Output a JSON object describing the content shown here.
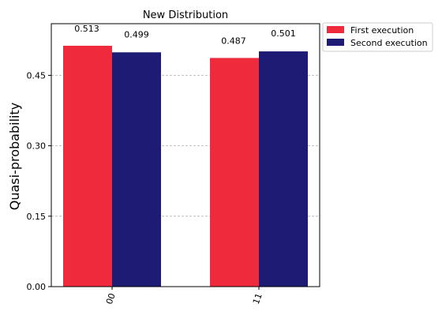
{
  "chart_data": {
    "type": "bar",
    "title": "New Distribution",
    "ylabel": "Quasi-probability",
    "xlabel": "",
    "categories": [
      "00",
      "11"
    ],
    "ylim": [
      0,
      0.56
    ],
    "yticks": [
      0.0,
      0.15,
      0.3,
      0.45
    ],
    "ytick_labels": [
      "0.00",
      "0.15",
      "0.30",
      "0.45"
    ],
    "grid": "horizontal dashed",
    "legend_position": "outside top-right",
    "series": [
      {
        "name": "First execution",
        "color": "#EE2A3C",
        "values": [
          0.513,
          0.487
        ],
        "labels": [
          "0.513",
          "0.487"
        ]
      },
      {
        "name": "Second execution",
        "color": "#1D1B74",
        "values": [
          0.499,
          0.501
        ],
        "labels": [
          "0.499",
          "0.501"
        ]
      }
    ]
  }
}
